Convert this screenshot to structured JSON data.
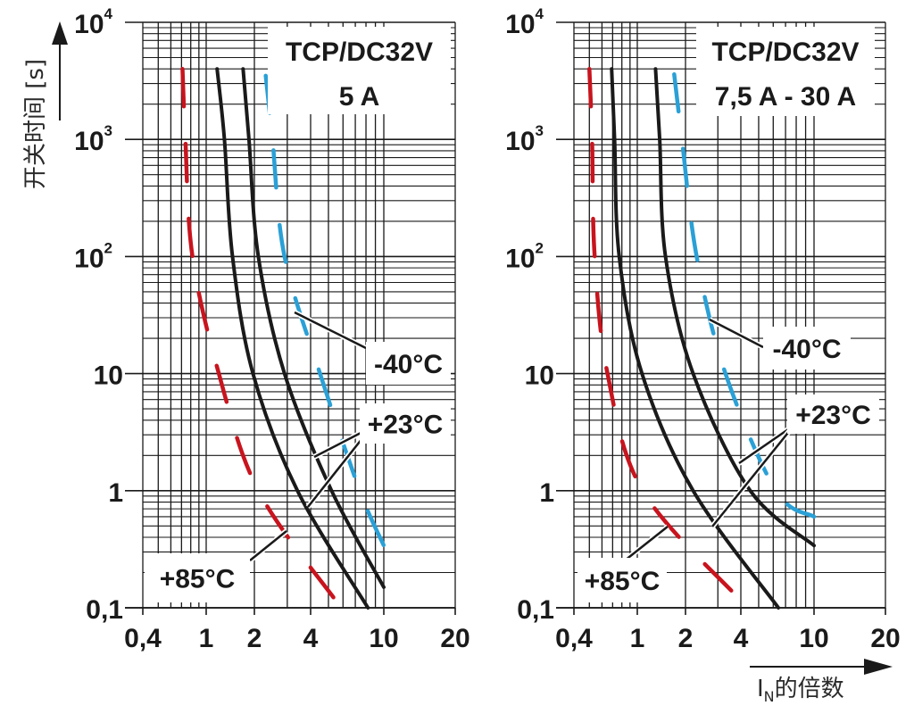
{
  "y_axis_title": "开关时间 [s]",
  "x_axis_title": {
    "main": "I",
    "sub": "N",
    "suffix": "的倍数"
  },
  "colors": {
    "grid": "#1a1a1a",
    "black_curve": "#1a1a1a",
    "minus40": "#2aa0d6",
    "plus85": "#c8141e",
    "label_bg": "#ffffff"
  },
  "chart_data": [
    {
      "type": "line",
      "title": [
        "TCP/DC32V",
        "5 A"
      ],
      "xlabel": "IN的倍数",
      "ylabel": "开关时间 [s]",
      "xscale": "log",
      "yscale": "log",
      "xlim": [
        0.4,
        20
      ],
      "ylim": [
        0.1,
        10000
      ],
      "grid": true,
      "x_ticks": [
        0.4,
        1,
        2,
        4,
        10,
        20
      ],
      "x_tick_labels": [
        "0,4",
        "1",
        "2",
        "4",
        "10",
        "20"
      ],
      "y_ticks": [
        0.1,
        1,
        10,
        100,
        1000,
        10000
      ],
      "y_tick_labels": [
        {
          "base": "0,1",
          "exp": ""
        },
        {
          "base": "1",
          "exp": ""
        },
        {
          "base": "10",
          "exp": ""
        },
        {
          "base": "10",
          "exp": "2"
        },
        {
          "base": "10",
          "exp": "3"
        },
        {
          "base": "10",
          "exp": "4"
        }
      ],
      "series": [
        {
          "name": "+23°C min",
          "style": "solid",
          "color": "#1a1a1a",
          "x": [
            1.17,
            1.3,
            1.46,
            1.96,
            3.4,
            8.2
          ],
          "y": [
            4000,
            1000,
            100,
            10,
            1,
            0.1
          ]
        },
        {
          "name": "+23°C max",
          "style": "solid",
          "color": "#1a1a1a",
          "x": [
            1.7,
            1.85,
            2.1,
            2.9,
            5.2,
            10
          ],
          "y": [
            4000,
            1000,
            100,
            10,
            1,
            0.15
          ]
        },
        {
          "name": "-40°C",
          "style": "dashed",
          "color": "#2aa0d6",
          "x": [
            2.3,
            2.5,
            2.9,
            4.5,
            7.4,
            10
          ],
          "y": [
            3500,
            1000,
            100,
            10,
            1,
            0.34
          ]
        },
        {
          "name": "+85°C",
          "style": "dashed",
          "color": "#c8141e",
          "x": [
            0.71,
            0.74,
            0.82,
            1.2,
            2.1,
            5.6
          ],
          "y": [
            4000,
            1000,
            100,
            10,
            1,
            0.11
          ]
        }
      ],
      "annotations": [
        {
          "text": "-40°C",
          "points_to": {
            "x": 3.1,
            "y": 33
          }
        },
        {
          "text": "+23°C",
          "points_to": [
            {
              "x": 4.1,
              "y": 2.2
            },
            {
              "x": 3.9,
              "y": 0.65
            }
          ]
        },
        {
          "text": "+85°C",
          "points_to": {
            "x": 2.9,
            "y": 0.45
          }
        }
      ]
    },
    {
      "type": "line",
      "title": [
        "TCP/DC32V",
        "7,5 A - 30 A"
      ],
      "xlabel": "IN的倍数",
      "ylabel": "开关时间 [s]",
      "xscale": "log",
      "yscale": "log",
      "xlim": [
        0.4,
        20
      ],
      "ylim": [
        0.1,
        10000
      ],
      "grid": true,
      "x_ticks": [
        0.4,
        1,
        2,
        4,
        10,
        20
      ],
      "x_tick_labels": [
        "0,4",
        "1",
        "2",
        "4",
        "10",
        "20"
      ],
      "y_ticks": [
        0.1,
        1,
        10,
        100,
        1000,
        10000
      ],
      "y_tick_labels": [
        {
          "base": "0,1",
          "exp": ""
        },
        {
          "base": "1",
          "exp": ""
        },
        {
          "base": "10",
          "exp": ""
        },
        {
          "base": "10",
          "exp": "2"
        },
        {
          "base": "10",
          "exp": "3"
        },
        {
          "base": "10",
          "exp": "4"
        }
      ],
      "series": [
        {
          "name": "+23°C min",
          "style": "solid",
          "color": "#1a1a1a",
          "x": [
            0.69,
            0.72,
            0.77,
            1.07,
            2.2,
            6.4
          ],
          "y": [
            4000,
            1000,
            100,
            10,
            1,
            0.1
          ]
        },
        {
          "name": "+23°C max",
          "style": "solid",
          "color": "#1a1a1a",
          "x": [
            1.3,
            1.38,
            1.5,
            2.2,
            4.5,
            10
          ],
          "y": [
            4000,
            1000,
            100,
            10,
            1,
            0.34
          ]
        },
        {
          "name": "-40°C",
          "style": "dashed",
          "color": "#2aa0d6",
          "x": [
            1.7,
            1.9,
            2.3,
            3.3,
            6.2,
            10
          ],
          "y": [
            3600,
            1000,
            100,
            10,
            1,
            0.6
          ]
        },
        {
          "name": "+85°C",
          "style": "dashed",
          "color": "#c8141e",
          "x": [
            0.5,
            0.52,
            0.54,
            0.65,
            1.08,
            3.9
          ],
          "y": [
            4000,
            1000,
            100,
            10,
            1,
            0.12
          ]
        }
      ],
      "annotations": [
        {
          "text": "-40°C",
          "points_to": {
            "x": 2.6,
            "y": 27
          }
        },
        {
          "text": "+23°C",
          "points_to": [
            {
              "x": 3.9,
              "y": 1.6
            },
            {
              "x": 2.7,
              "y": 0.45
            }
          ]
        },
        {
          "text": "+85°C",
          "points_to": {
            "x": 1.5,
            "y": 0.5
          }
        }
      ]
    }
  ]
}
